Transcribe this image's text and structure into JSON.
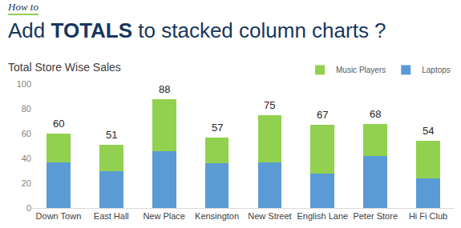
{
  "header": {
    "kicker": "How to",
    "title": "Add TOTALS to stacked column charts ?",
    "emphasis": "TOTALS"
  },
  "chart_data": {
    "type": "bar",
    "title": "Total Store Wise Sales",
    "stacked": true,
    "categories": [
      "Down Town",
      "East Hall",
      "New Place",
      "Kensington",
      "New Street",
      "English Lane",
      "Peter Store",
      "Hi Fi Club"
    ],
    "series": [
      {
        "name": "Laptops",
        "color": "#5b9bd5",
        "values": [
          37,
          30,
          46,
          36,
          37,
          28,
          42,
          24
        ]
      },
      {
        "name": "Music Players",
        "color": "#92d050",
        "values": [
          23,
          21,
          42,
          21,
          38,
          39,
          26,
          30
        ]
      }
    ],
    "totals": [
      60,
      51,
      88,
      57,
      75,
      67,
      68,
      54
    ],
    "ylim": [
      0,
      100
    ],
    "yticks": [
      0,
      20,
      40,
      60,
      80,
      100
    ],
    "grid": false,
    "legend": "top-right"
  }
}
